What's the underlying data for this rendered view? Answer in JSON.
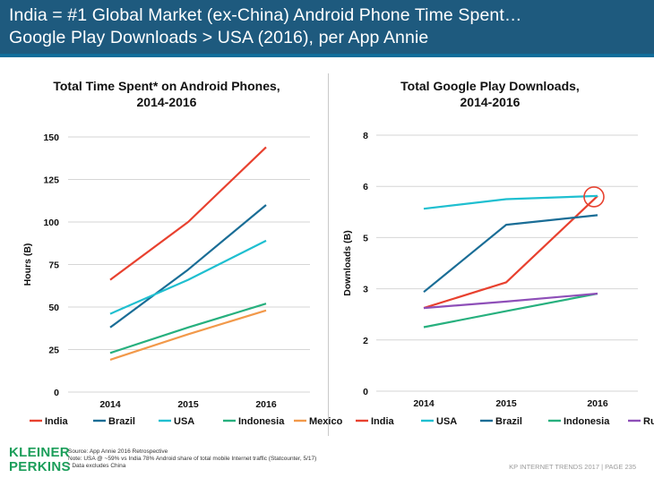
{
  "header": {
    "line1": "India = #1 Global Market (ex-China) Android Phone Time Spent…",
    "line2": "Google Play Downloads > USA (2016), per App Annie"
  },
  "footer": {
    "logo_line1": "KLEINER",
    "logo_line2": "PERKINS",
    "source": "Source: App Annie 2016 Retrospective",
    "note": "Note: USA @ ~59% vs India 78% Android share of total mobile Internet traffic (Statcounter, 5/17)",
    "footnote": "* Data excludes China",
    "page_label": "KP INTERNET TRENDS 2017  |  PAGE 235"
  },
  "colors": {
    "header_bg": "#1e5a7e",
    "india": "#e8412f",
    "brazil": "#1a6d96",
    "usa": "#1fbfd0",
    "indonesia": "#27b07e",
    "mexico": "#f2994a",
    "russia": "#8e4fb8"
  },
  "chart_data": [
    {
      "type": "line",
      "title_line1": "Total Time Spent* on Android Phones,",
      "title_line2": "2014-2016",
      "xlabel": "",
      "ylabel": "Hours (B)",
      "x": [
        "2014",
        "2015",
        "2016"
      ],
      "ylim": [
        0,
        150
      ],
      "yticks": [
        "0",
        "25",
        "50",
        "75",
        "100",
        "125",
        "150"
      ],
      "grid": true,
      "legend_position": "bottom",
      "series": [
        {
          "name": "India",
          "values": [
            66,
            100,
            144
          ],
          "color": "#e8412f"
        },
        {
          "name": "Brazil",
          "values": [
            38,
            72,
            110
          ],
          "color": "#1a6d96"
        },
        {
          "name": "USA",
          "values": [
            46,
            66,
            89
          ],
          "color": "#1fbfd0"
        },
        {
          "name": "Indonesia",
          "values": [
            23,
            38,
            52
          ],
          "color": "#27b07e"
        },
        {
          "name": "Mexico",
          "values": [
            19,
            34,
            48
          ],
          "color": "#f2994a"
        }
      ]
    },
    {
      "type": "line",
      "title_line1": "Total Google Play Downloads,",
      "title_line2": "2014-2016",
      "xlabel": "",
      "ylabel": "Downloads (B)",
      "x": [
        "2014",
        "2015",
        "2016"
      ],
      "ylim": [
        0,
        8
      ],
      "yticks": [
        "0",
        "2",
        "3",
        "5",
        "6",
        "8"
      ],
      "ytick_values": [
        0,
        2,
        3,
        5,
        6,
        8
      ],
      "grid": true,
      "legend_position": "bottom",
      "annotation": "circle highlighting India 2016",
      "series": [
        {
          "name": "India",
          "values": [
            2.6,
            3.4,
            6.1
          ],
          "color": "#e8412f"
        },
        {
          "name": "USA",
          "values": [
            5.7,
            6.0,
            6.1
          ],
          "color": "#1fbfd0"
        },
        {
          "name": "Brazil",
          "values": [
            3.1,
            5.2,
            5.5
          ],
          "color": "#1a6d96"
        },
        {
          "name": "Indonesia",
          "values": [
            2.0,
            2.5,
            3.05
          ],
          "color": "#27b07e"
        },
        {
          "name": "Russia",
          "values": [
            2.6,
            2.8,
            3.05
          ],
          "color": "#8e4fb8"
        }
      ]
    }
  ]
}
